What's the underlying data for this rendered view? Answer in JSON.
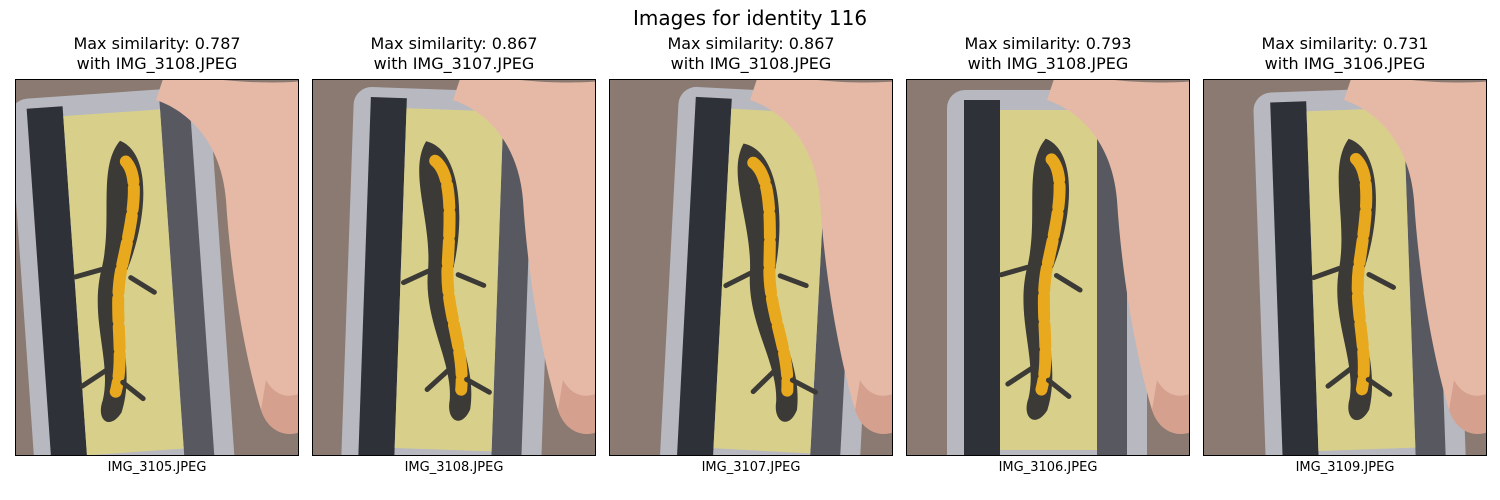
{
  "figure": {
    "title": "Images for identity 116"
  },
  "panels": [
    {
      "title_line1": "Max similarity: 0.787",
      "title_line2": "with IMG_3108.JPEG",
      "filename": "IMG_3105.JPEG"
    },
    {
      "title_line1": "Max similarity: 0.867",
      "title_line2": "with IMG_3107.JPEG",
      "filename": "IMG_3108.JPEG"
    },
    {
      "title_line1": "Max similarity: 0.867",
      "title_line2": "with IMG_3108.JPEG",
      "filename": "IMG_3107.JPEG"
    },
    {
      "title_line1": "Max similarity: 0.793",
      "title_line2": "with IMG_3108.JPEG",
      "filename": "IMG_3106.JPEG"
    },
    {
      "title_line1": "Max similarity: 0.731",
      "title_line2": "with IMG_3106.JPEG",
      "filename": "IMG_3109.JPEG"
    }
  ],
  "colors": {
    "skin": "#e6b9a6",
    "skin_shadow": "#c98f7e",
    "container": "#b9bcc4",
    "container_dark": "#2f3138",
    "substrate": "#d8d08a",
    "newt_body": "#3c3a36",
    "newt_pattern": "#e8a91e",
    "background_stone": "#8b7a72"
  }
}
